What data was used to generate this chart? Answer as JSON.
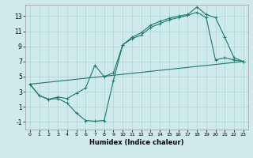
{
  "xlabel": "Humidex (Indice chaleur)",
  "background_color": "#ceeaea",
  "line_color": "#1a7a6e",
  "grid_color": "#aed4d4",
  "line1_x": [
    0,
    1,
    2,
    3,
    4,
    5,
    6,
    7,
    8,
    9,
    10,
    11,
    12,
    13,
    14,
    15,
    16,
    17,
    18,
    19,
    20,
    21,
    22,
    23
  ],
  "line1_y": [
    4.0,
    2.5,
    2.0,
    2.1,
    1.5,
    0.2,
    -0.8,
    -0.9,
    -0.8,
    4.5,
    9.2,
    10.0,
    10.5,
    11.5,
    12.0,
    12.5,
    12.8,
    13.1,
    13.5,
    12.8,
    7.2,
    7.5,
    7.2,
    7.0
  ],
  "line2_x": [
    0,
    23
  ],
  "line2_y": [
    4.0,
    7.0
  ],
  "line3_x": [
    0,
    1,
    2,
    3,
    4,
    5,
    6,
    7,
    8,
    9,
    10,
    11,
    12,
    13,
    14,
    15,
    16,
    17,
    18,
    19,
    20,
    21,
    22,
    23
  ],
  "line3_y": [
    4.0,
    2.5,
    2.0,
    2.3,
    2.1,
    2.8,
    3.5,
    6.5,
    5.0,
    5.5,
    9.2,
    10.2,
    10.8,
    11.8,
    12.3,
    12.7,
    13.0,
    13.2,
    14.2,
    13.2,
    12.8,
    10.2,
    7.5,
    7.0
  ],
  "ylim": [
    -2,
    14.5
  ],
  "xlim": [
    -0.5,
    23.5
  ],
  "yticks": [
    -1,
    1,
    3,
    5,
    7,
    9,
    11,
    13
  ],
  "xticks": [
    0,
    1,
    2,
    3,
    4,
    5,
    6,
    7,
    8,
    9,
    10,
    11,
    12,
    13,
    14,
    15,
    16,
    17,
    18,
    19,
    20,
    21,
    22,
    23
  ]
}
